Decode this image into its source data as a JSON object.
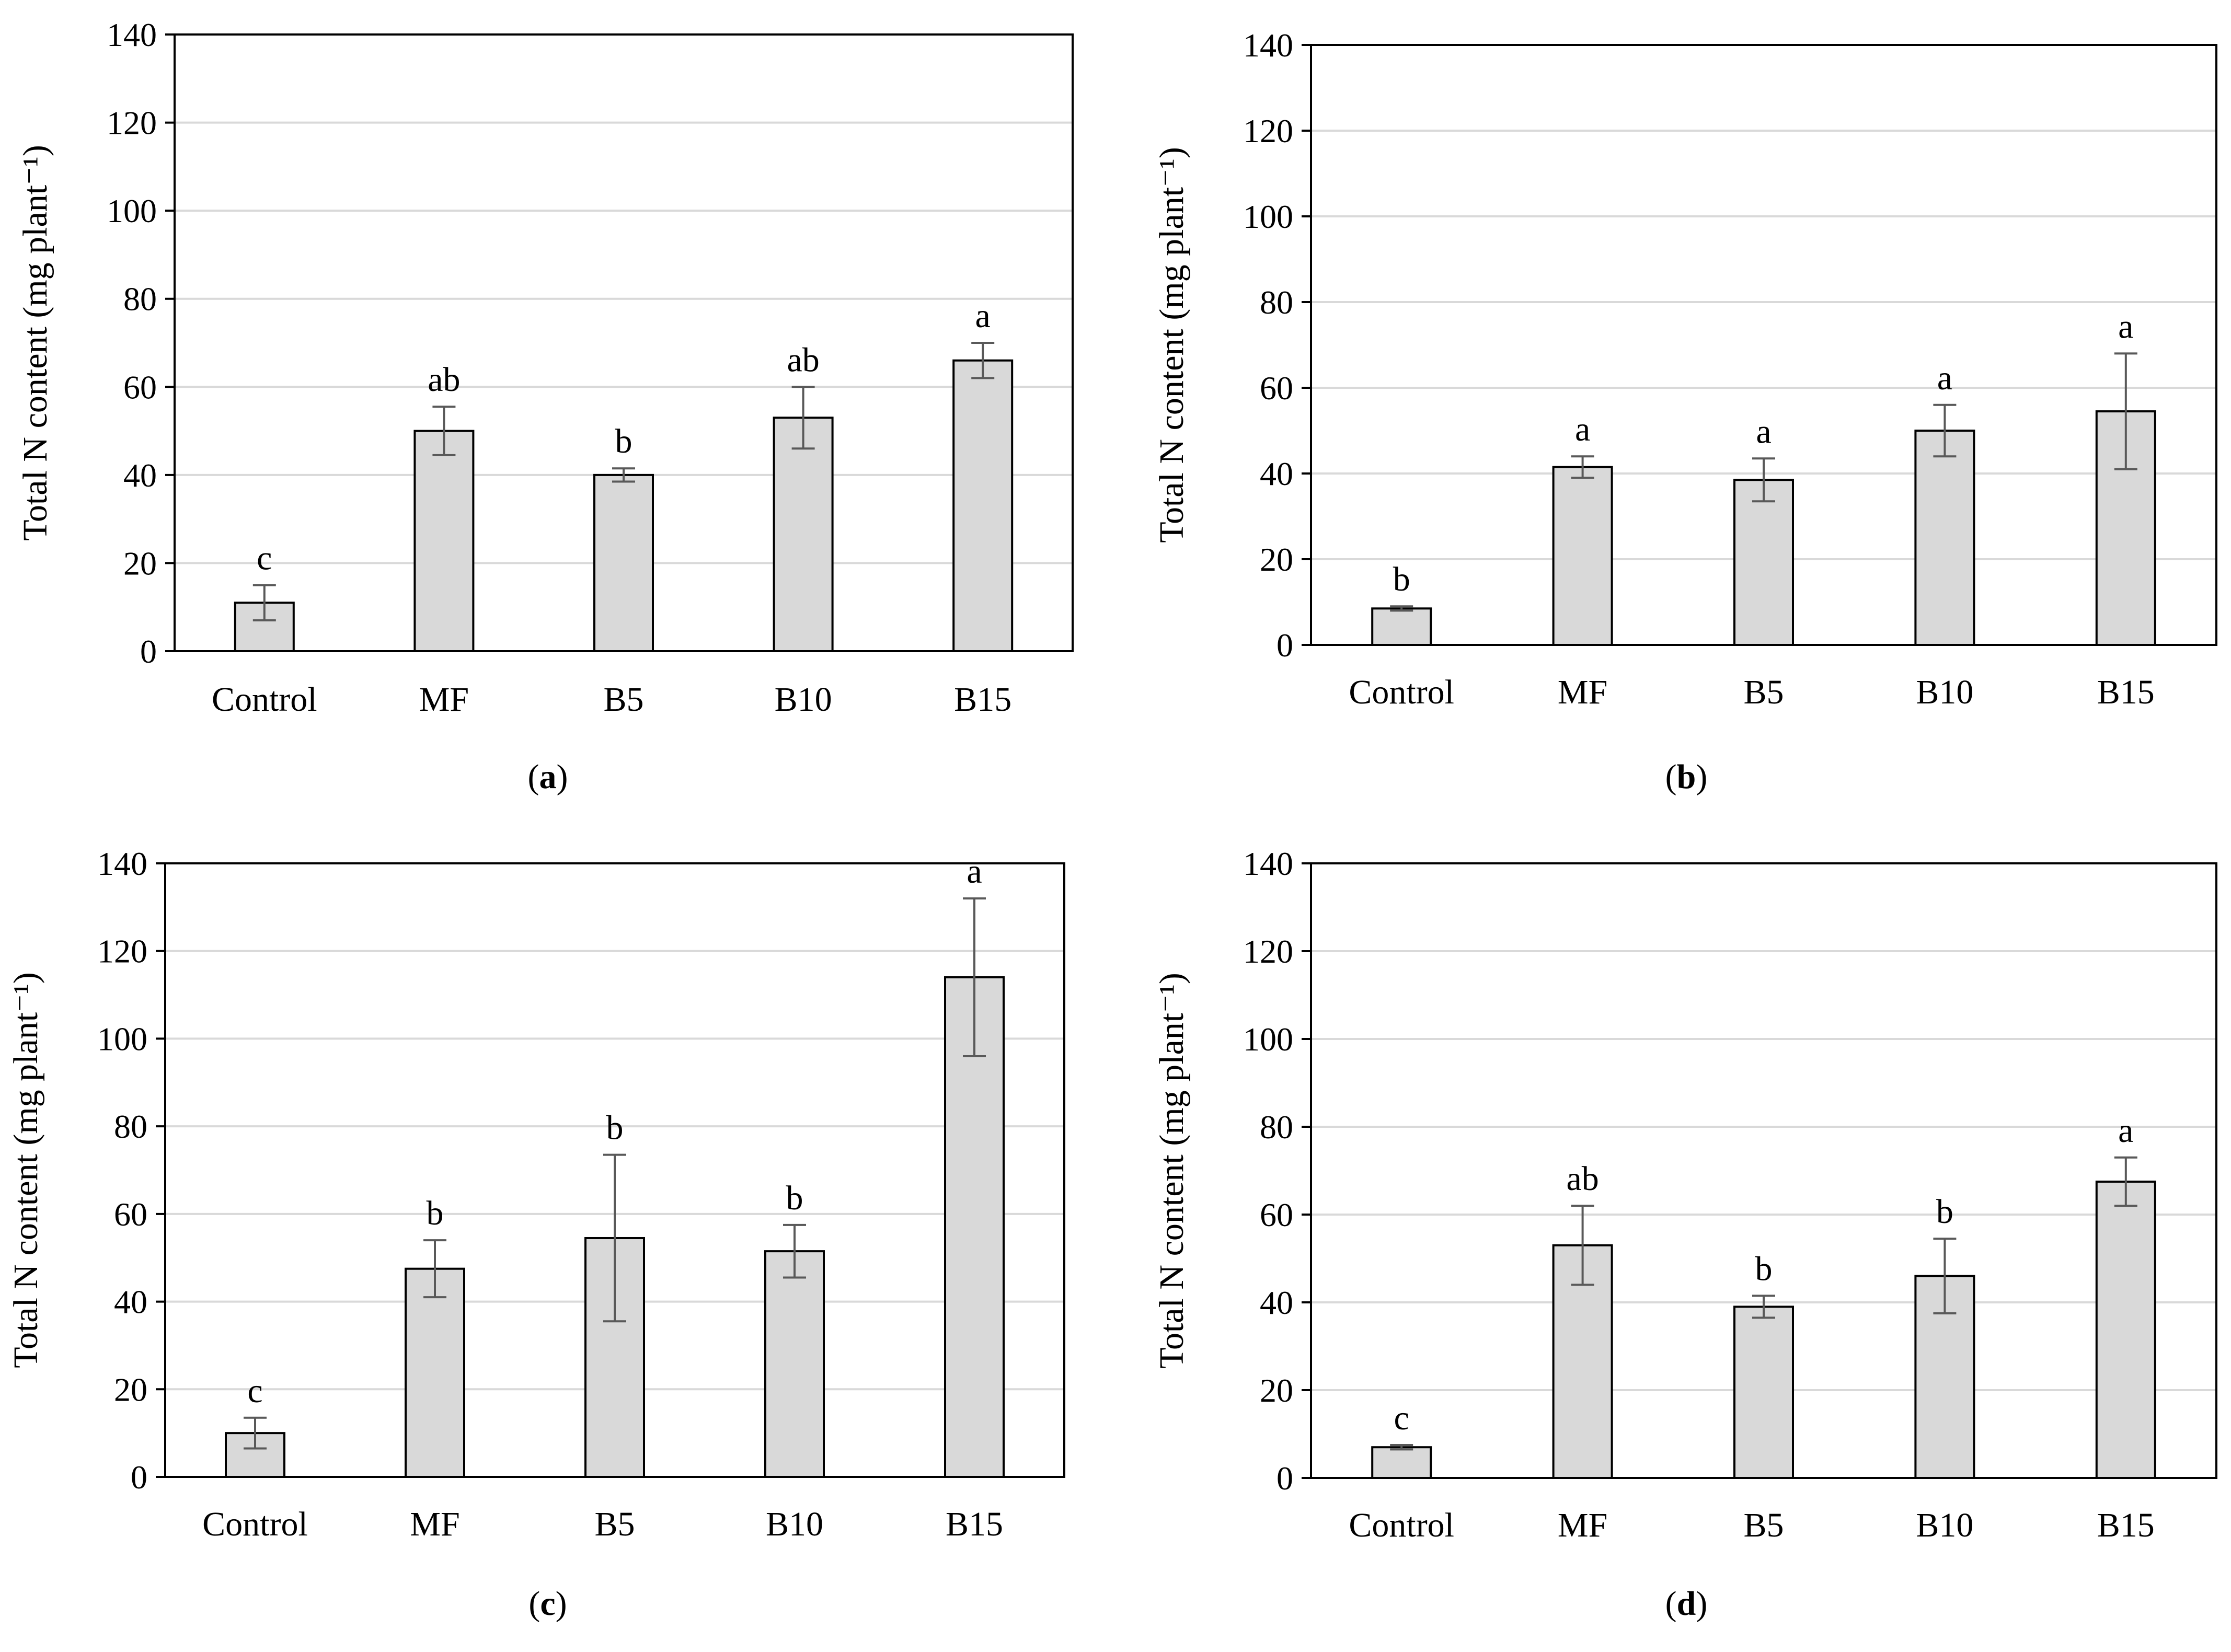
{
  "figure": {
    "bar_fill": "#d9d9d9",
    "bar_stroke": "#000000",
    "grid_color": "#d9d9d9",
    "error_bar_color": "#595959"
  },
  "chart_data": [
    {
      "id": "a",
      "type": "bar",
      "panel_label": "a",
      "ylabel": "Total N content (mg plant⁻¹)",
      "xlabel": "",
      "ylim": [
        0,
        140
      ],
      "yticks": [
        0,
        20,
        40,
        60,
        80,
        100,
        120,
        140
      ],
      "grid": true,
      "categories": [
        "Control",
        "MF",
        "B5",
        "B10",
        "B15"
      ],
      "values": [
        11,
        50,
        40,
        53,
        66
      ],
      "errors": [
        4,
        5.5,
        1.5,
        7,
        4
      ],
      "letters": [
        "c",
        "ab",
        "b",
        "ab",
        "a"
      ]
    },
    {
      "id": "b",
      "type": "bar",
      "panel_label": "b",
      "ylabel": "Total N content (mg plant⁻¹)",
      "xlabel": "",
      "ylim": [
        0,
        140
      ],
      "yticks": [
        0,
        20,
        40,
        60,
        80,
        100,
        120,
        140
      ],
      "grid": true,
      "categories": [
        "Control",
        "MF",
        "B5",
        "B10",
        "B15"
      ],
      "values": [
        8.5,
        41.5,
        38.5,
        50,
        54.5
      ],
      "errors": [
        0.5,
        2.5,
        5,
        6,
        13.5
      ],
      "letters": [
        "b",
        "a",
        "a",
        "a",
        "a"
      ]
    },
    {
      "id": "c",
      "type": "bar",
      "panel_label": "c",
      "ylabel": "Total N content (mg plant⁻¹)",
      "xlabel": "",
      "ylim": [
        0,
        140
      ],
      "yticks": [
        0,
        20,
        40,
        60,
        80,
        100,
        120,
        140
      ],
      "grid": true,
      "categories": [
        "Control",
        "MF",
        "B5",
        "B10",
        "B15"
      ],
      "values": [
        10,
        47.5,
        54.5,
        51.5,
        114
      ],
      "errors": [
        3.5,
        6.5,
        19,
        6,
        18
      ],
      "letters": [
        "c",
        "b",
        "b",
        "b",
        "a"
      ]
    },
    {
      "id": "d",
      "type": "bar",
      "panel_label": "d",
      "ylabel": "Total N content (mg plant⁻¹)",
      "xlabel": "",
      "ylim": [
        0,
        140
      ],
      "yticks": [
        0,
        20,
        40,
        60,
        80,
        100,
        120,
        140
      ],
      "grid": true,
      "categories": [
        "Control",
        "MF",
        "B5",
        "B10",
        "B15"
      ],
      "values": [
        7,
        53,
        39,
        46,
        67.5
      ],
      "errors": [
        0.5,
        9,
        2.5,
        8.5,
        5.5
      ],
      "letters": [
        "c",
        "ab",
        "b",
        "b",
        "a"
      ]
    }
  ]
}
